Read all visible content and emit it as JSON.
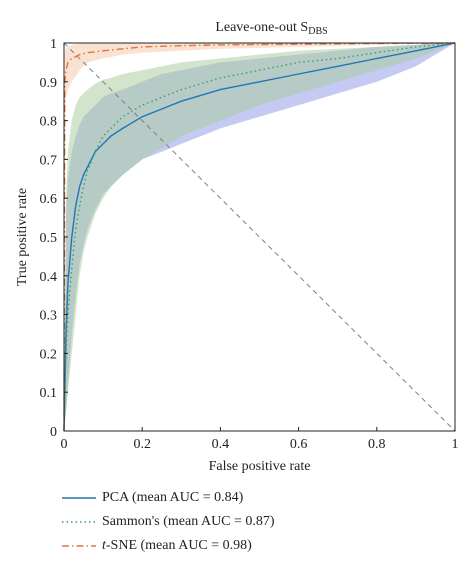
{
  "chart_data": {
    "type": "line",
    "title": "Leave-one-out S",
    "title_subscript": "DBS",
    "xlabel": "False positive rate",
    "ylabel": "True positive rate",
    "xlim": [
      0,
      1
    ],
    "ylim": [
      0,
      1
    ],
    "x_ticks": [
      "0",
      "0.2",
      "0.4",
      "0.6",
      "0.8",
      "1"
    ],
    "y_ticks": [
      "0",
      "0.1",
      "0.2",
      "0.3",
      "0.4",
      "0.5",
      "0.6",
      "0.7",
      "0.8",
      "0.9",
      "1"
    ],
    "x_tick_values": [
      0,
      0.2,
      0.4,
      0.6,
      0.8,
      1
    ],
    "y_tick_values": [
      0,
      0.1,
      0.2,
      0.3,
      0.4,
      0.5,
      0.6,
      0.7,
      0.8,
      0.9,
      1
    ],
    "grid": false,
    "legend_position": "bottom",
    "chance_line": {
      "x": [
        0,
        1
      ],
      "y": [
        1,
        0
      ],
      "style": "dashed",
      "color": "#7f7f7f"
    },
    "series": [
      {
        "name": "PCA (mean AUC = 0.84)",
        "color": "#1f77b4",
        "band_color": "#8c96e6",
        "style": "solid",
        "x": [
          0,
          0.005,
          0.01,
          0.02,
          0.03,
          0.04,
          0.05,
          0.06,
          0.08,
          0.1,
          0.12,
          0.15,
          0.2,
          0.25,
          0.3,
          0.4,
          0.5,
          0.6,
          0.7,
          0.8,
          0.9,
          0.95,
          1
        ],
        "y": [
          0,
          0.25,
          0.38,
          0.5,
          0.58,
          0.63,
          0.66,
          0.68,
          0.72,
          0.74,
          0.76,
          0.78,
          0.81,
          0.83,
          0.85,
          0.88,
          0.9,
          0.92,
          0.94,
          0.96,
          0.98,
          0.99,
          1
        ],
        "upper": [
          0,
          0.55,
          0.65,
          0.72,
          0.76,
          0.79,
          0.81,
          0.82,
          0.84,
          0.86,
          0.87,
          0.88,
          0.9,
          0.92,
          0.93,
          0.95,
          0.96,
          0.97,
          0.98,
          0.99,
          0.995,
          1,
          1
        ],
        "lower": [
          0,
          0.05,
          0.12,
          0.25,
          0.35,
          0.43,
          0.48,
          0.52,
          0.57,
          0.61,
          0.63,
          0.66,
          0.7,
          0.72,
          0.74,
          0.78,
          0.81,
          0.84,
          0.87,
          0.9,
          0.94,
          0.97,
          1
        ]
      },
      {
        "name": "Sammon's (mean AUC = 0.87)",
        "color": "#3a9e6c",
        "band_color": "#a8c99a",
        "style": "dotted",
        "x": [
          0,
          0.005,
          0.01,
          0.02,
          0.03,
          0.04,
          0.05,
          0.06,
          0.08,
          0.1,
          0.12,
          0.15,
          0.2,
          0.25,
          0.3,
          0.4,
          0.5,
          0.6,
          0.7,
          0.8,
          0.9,
          0.95,
          1
        ],
        "y": [
          0,
          0.2,
          0.3,
          0.42,
          0.52,
          0.58,
          0.63,
          0.67,
          0.72,
          0.76,
          0.78,
          0.81,
          0.84,
          0.86,
          0.88,
          0.91,
          0.93,
          0.95,
          0.96,
          0.975,
          0.99,
          0.995,
          1
        ],
        "upper": [
          0,
          0.6,
          0.72,
          0.8,
          0.84,
          0.86,
          0.87,
          0.88,
          0.895,
          0.905,
          0.91,
          0.92,
          0.93,
          0.94,
          0.95,
          0.96,
          0.97,
          0.98,
          0.985,
          0.99,
          0.995,
          1,
          1
        ],
        "lower": [
          0,
          0.05,
          0.1,
          0.2,
          0.3,
          0.4,
          0.46,
          0.5,
          0.56,
          0.6,
          0.63,
          0.66,
          0.7,
          0.73,
          0.76,
          0.8,
          0.84,
          0.87,
          0.9,
          0.93,
          0.96,
          0.98,
          1
        ]
      },
      {
        "name": "t-SNE (mean AUC = 0.98)",
        "name_italic": "t",
        "name_rest": "-SNE (mean AUC = 0.98)",
        "color": "#e2743c",
        "band_color": "#f5c6a8",
        "style": "dashdot",
        "x": [
          0,
          0.002,
          0.005,
          0.01,
          0.02,
          0.04,
          0.06,
          0.1,
          0.15,
          0.2,
          0.3,
          0.4,
          0.6,
          0.8,
          1
        ],
        "y": [
          0,
          0.9,
          0.93,
          0.95,
          0.96,
          0.97,
          0.975,
          0.98,
          0.985,
          0.99,
          0.993,
          0.995,
          0.997,
          0.999,
          1
        ],
        "upper": [
          0,
          0.97,
          0.985,
          0.99,
          0.995,
          0.998,
          1,
          1,
          1,
          1,
          1,
          1,
          1,
          1,
          1
        ],
        "lower": [
          0,
          0.82,
          0.86,
          0.88,
          0.9,
          0.93,
          0.95,
          0.96,
          0.97,
          0.975,
          0.98,
          0.985,
          0.99,
          0.995,
          1
        ]
      }
    ]
  }
}
